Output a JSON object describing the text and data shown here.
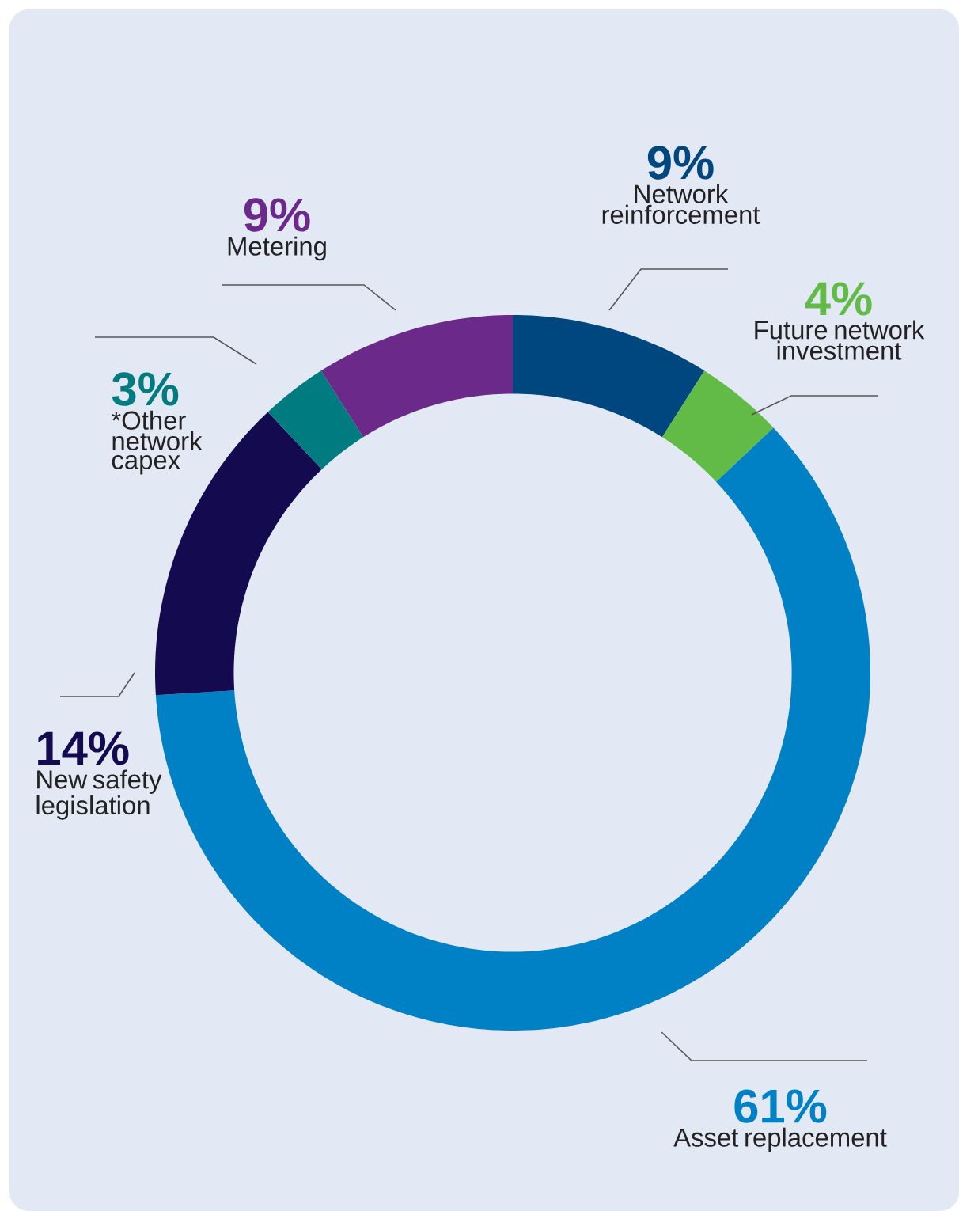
{
  "chart_data": {
    "type": "donut",
    "categories": [
      "Network reinforcement",
      "Future network investment",
      "Asset replacement",
      "New safety legislation",
      "*Other network capex",
      "Metering"
    ],
    "values": [
      9,
      4,
      61,
      14,
      3,
      9
    ],
    "colors": [
      "#00467f",
      "#62bb46",
      "#0081c6",
      "#140a50",
      "#007c80",
      "#6b2a8a"
    ],
    "value_labels": [
      "9%",
      "4%",
      "61%",
      "14%",
      "3%",
      "9%"
    ]
  }
}
